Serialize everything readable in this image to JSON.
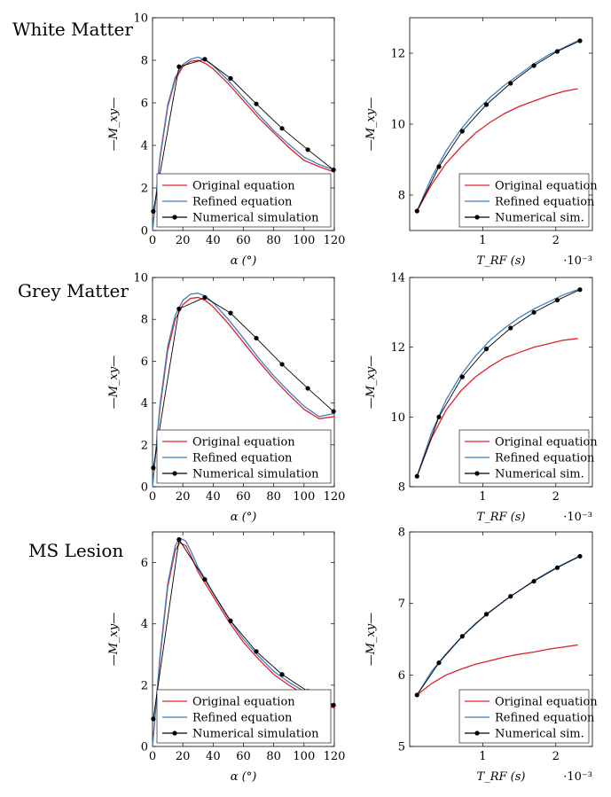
{
  "figure": {
    "row_labels": [
      "White Matter",
      "Grey Matter",
      "MS Lesion"
    ],
    "colors": {
      "original": "#e0202a",
      "refined": "#3f7fc0",
      "numerical": "#000000"
    }
  },
  "chart_data": [
    {
      "id": "wm-alpha",
      "type": "line",
      "row_label": "White Matter",
      "xlabel": "α (°)",
      "ylabel": "—M_xy—",
      "xlim": [
        0,
        120
      ],
      "ylim": [
        0,
        10
      ],
      "xticks": [
        "0",
        "20",
        "40",
        "60",
        "80",
        "100",
        "120"
      ],
      "xtick_values": [
        0,
        20,
        40,
        60,
        80,
        100,
        120
      ],
      "yticks": [
        "0",
        "2",
        "4",
        "6",
        "8",
        "10"
      ],
      "ytick_values": [
        0,
        2,
        4,
        6,
        8,
        10
      ],
      "exponent_label": "",
      "legend": [
        "Original equation",
        "Refined equation",
        "Numerical simulation"
      ],
      "series": [
        {
          "name": "Original equation",
          "style": "line",
          "x": [
            0,
            5,
            10,
            15,
            20,
            25,
            30,
            35,
            40,
            50,
            60,
            70,
            80,
            90,
            100,
            110,
            120
          ],
          "y": [
            0,
            3.4,
            5.8,
            7.1,
            7.7,
            7.95,
            8.0,
            7.85,
            7.6,
            6.9,
            6.1,
            5.3,
            4.6,
            3.9,
            3.3,
            3.0,
            2.75
          ]
        },
        {
          "name": "Refined equation",
          "style": "line",
          "x": [
            0,
            5,
            10,
            15,
            20,
            25,
            30,
            35,
            40,
            50,
            60,
            70,
            80,
            90,
            100,
            110,
            120
          ],
          "y": [
            0,
            3.5,
            5.9,
            7.2,
            7.8,
            8.05,
            8.15,
            8.0,
            7.75,
            7.05,
            6.25,
            5.45,
            4.7,
            4.05,
            3.45,
            3.1,
            2.85
          ]
        },
        {
          "name": "Numerical simulation",
          "style": "markers",
          "x": [
            0.5,
            17.5,
            34.5,
            51.5,
            68.5,
            85.5,
            102.5,
            119.5
          ],
          "y": [
            0.9,
            7.7,
            8.05,
            7.15,
            5.95,
            4.8,
            3.8,
            2.85
          ]
        }
      ]
    },
    {
      "id": "wm-trf",
      "type": "line",
      "row_label": "White Matter",
      "xlabel": "T_RF (s)",
      "ylabel": "—M_xy—",
      "xlim": [
        0.0,
        2.5
      ],
      "ylim": [
        7.0,
        13.0
      ],
      "xticks": [
        "1",
        "2"
      ],
      "xtick_values": [
        1,
        2
      ],
      "yticks": [
        "8",
        "10",
        "12"
      ],
      "ytick_values": [
        8,
        10,
        12
      ],
      "exponent_label": "·10⁻³",
      "legend": [
        "Original equation",
        "Refined equation",
        "Numerical sim."
      ],
      "series": [
        {
          "name": "Original equation",
          "style": "line",
          "x": [
            0.1,
            0.3,
            0.5,
            0.7,
            0.9,
            1.1,
            1.3,
            1.5,
            1.7,
            1.9,
            2.1,
            2.3
          ],
          "y": [
            7.55,
            8.3,
            8.9,
            9.35,
            9.75,
            10.05,
            10.3,
            10.5,
            10.65,
            10.8,
            10.92,
            11.0
          ]
        },
        {
          "name": "Refined equation",
          "style": "line",
          "x": [
            0.1,
            0.3,
            0.5,
            0.7,
            0.9,
            1.1,
            1.3,
            1.5,
            1.7,
            1.9,
            2.1,
            2.3
          ],
          "y": [
            7.55,
            8.5,
            9.25,
            9.85,
            10.35,
            10.75,
            11.1,
            11.4,
            11.7,
            11.95,
            12.15,
            12.35
          ]
        },
        {
          "name": "Numerical sim.",
          "style": "markers",
          "x": [
            0.1,
            0.4,
            0.72,
            1.05,
            1.38,
            1.7,
            2.02,
            2.33
          ],
          "y": [
            7.55,
            8.8,
            9.8,
            10.55,
            11.15,
            11.65,
            12.05,
            12.35
          ]
        }
      ]
    },
    {
      "id": "gm-alpha",
      "type": "line",
      "row_label": "Grey Matter",
      "xlabel": "α (°)",
      "ylabel": "—M_xy—",
      "xlim": [
        0,
        120
      ],
      "ylim": [
        0,
        10
      ],
      "xticks": [
        "0",
        "20",
        "40",
        "60",
        "80",
        "100",
        "120"
      ],
      "xtick_values": [
        0,
        20,
        40,
        60,
        80,
        100,
        120
      ],
      "yticks": [
        "0",
        "2",
        "4",
        "6",
        "8",
        "10"
      ],
      "ytick_values": [
        0,
        2,
        4,
        6,
        8,
        10
      ],
      "exponent_label": "",
      "legend": [
        "Original equation",
        "Refined equation",
        "Numerical simulation"
      ],
      "series": [
        {
          "name": "Original equation",
          "style": "line",
          "x": [
            0,
            5,
            10,
            15,
            20,
            25,
            30,
            35,
            40,
            50,
            60,
            70,
            80,
            90,
            100,
            110,
            120
          ],
          "y": [
            0,
            3.8,
            6.5,
            8.0,
            8.7,
            9.0,
            9.05,
            8.9,
            8.6,
            7.8,
            6.9,
            6.0,
            5.15,
            4.4,
            3.7,
            3.25,
            3.35
          ]
        },
        {
          "name": "Refined equation",
          "style": "line",
          "x": [
            0,
            5,
            10,
            15,
            20,
            25,
            30,
            35,
            40,
            50,
            60,
            70,
            80,
            90,
            100,
            110,
            120
          ],
          "y": [
            0,
            3.95,
            6.7,
            8.2,
            8.9,
            9.2,
            9.25,
            9.1,
            8.8,
            8.0,
            7.1,
            6.15,
            5.3,
            4.55,
            3.85,
            3.35,
            3.5
          ]
        },
        {
          "name": "Numerical simulation",
          "style": "markers",
          "x": [
            0.5,
            17.5,
            34.5,
            51.5,
            68.5,
            85.5,
            102.5,
            119.5
          ],
          "y": [
            0.9,
            8.5,
            9.05,
            8.3,
            7.1,
            5.85,
            4.7,
            3.6
          ]
        }
      ]
    },
    {
      "id": "gm-trf",
      "type": "line",
      "row_label": "Grey Matter",
      "xlabel": "T_RF (s)",
      "ylabel": "—M_xy—",
      "xlim": [
        0.0,
        2.5
      ],
      "ylim": [
        8.0,
        14.0
      ],
      "xticks": [
        "1",
        "2"
      ],
      "xtick_values": [
        1,
        2
      ],
      "yticks": [
        "8",
        "10",
        "12",
        "14"
      ],
      "ytick_values": [
        8,
        10,
        12,
        14
      ],
      "exponent_label": "·10⁻³",
      "legend": [
        "Original equation",
        "Refined equation",
        "Numerical sim."
      ],
      "series": [
        {
          "name": "Original equation",
          "style": "line",
          "x": [
            0.1,
            0.3,
            0.5,
            0.7,
            0.9,
            1.1,
            1.3,
            1.5,
            1.7,
            1.9,
            2.1,
            2.3
          ],
          "y": [
            8.3,
            9.4,
            10.2,
            10.75,
            11.15,
            11.45,
            11.7,
            11.85,
            12.0,
            12.1,
            12.2,
            12.25
          ]
        },
        {
          "name": "Refined equation",
          "style": "line",
          "x": [
            0.1,
            0.3,
            0.5,
            0.7,
            0.9,
            1.1,
            1.3,
            1.5,
            1.7,
            1.9,
            2.1,
            2.3
          ],
          "y": [
            8.3,
            9.55,
            10.5,
            11.2,
            11.75,
            12.2,
            12.55,
            12.85,
            13.1,
            13.3,
            13.5,
            13.65
          ]
        },
        {
          "name": "Numerical sim.",
          "style": "markers",
          "x": [
            0.1,
            0.4,
            0.72,
            1.05,
            1.38,
            1.7,
            2.02,
            2.33
          ],
          "y": [
            8.3,
            10.0,
            11.15,
            11.95,
            12.55,
            13.0,
            13.35,
            13.65
          ]
        }
      ]
    },
    {
      "id": "ms-alpha",
      "type": "line",
      "row_label": "MS Lesion",
      "xlabel": "α (°)",
      "ylabel": "—M_xy—",
      "xlim": [
        0,
        120
      ],
      "ylim": [
        0,
        7
      ],
      "xticks": [
        "0",
        "20",
        "40",
        "60",
        "80",
        "100",
        "120"
      ],
      "xtick_values": [
        0,
        20,
        40,
        60,
        80,
        100,
        120
      ],
      "yticks": [
        "0",
        "2",
        "4",
        "6"
      ],
      "ytick_values": [
        0,
        2,
        4,
        6
      ],
      "exponent_label": "",
      "legend": [
        "Original equation",
        "Refined equation",
        "Numerical simulation"
      ],
      "series": [
        {
          "name": "Original equation",
          "style": "line",
          "x": [
            0,
            5,
            10,
            15,
            18,
            22,
            26,
            30,
            35,
            40,
            50,
            60,
            70,
            80,
            90,
            100,
            110,
            120
          ],
          "y": [
            0,
            2.9,
            5.2,
            6.4,
            6.65,
            6.55,
            6.15,
            5.7,
            5.3,
            4.9,
            4.1,
            3.4,
            2.85,
            2.35,
            2.0,
            1.7,
            1.45,
            1.25
          ]
        },
        {
          "name": "Refined equation",
          "style": "line",
          "x": [
            0,
            5,
            10,
            15,
            18,
            22,
            26,
            30,
            35,
            40,
            50,
            60,
            70,
            80,
            90,
            100,
            110,
            120
          ],
          "y": [
            0,
            3.0,
            5.3,
            6.55,
            6.8,
            6.7,
            6.3,
            5.85,
            5.45,
            5.0,
            4.2,
            3.5,
            2.95,
            2.45,
            2.1,
            1.8,
            1.5,
            1.3
          ]
        },
        {
          "name": "Numerical simulation",
          "style": "markers",
          "x": [
            0.5,
            17.5,
            34.5,
            51.5,
            68.5,
            85.5,
            102.5,
            119.5
          ],
          "y": [
            0.9,
            6.75,
            5.45,
            4.1,
            3.1,
            2.35,
            1.8,
            1.35
          ]
        }
      ]
    },
    {
      "id": "ms-trf",
      "type": "line",
      "row_label": "MS Lesion",
      "xlabel": "T_RF (s)",
      "ylabel": "—M_xy—",
      "xlim": [
        0.0,
        2.5
      ],
      "ylim": [
        5.0,
        8.0
      ],
      "xticks": [
        "1",
        "2"
      ],
      "xtick_values": [
        1,
        2
      ],
      "yticks": [
        "5",
        "6",
        "7",
        "8"
      ],
      "ytick_values": [
        5,
        6,
        7,
        8
      ],
      "exponent_label": "·10⁻³",
      "legend": [
        "Original equation",
        "Refined equation",
        "Numerical sim."
      ],
      "series": [
        {
          "name": "Original equation",
          "style": "line",
          "x": [
            0.1,
            0.3,
            0.5,
            0.7,
            0.9,
            1.1,
            1.3,
            1.5,
            1.7,
            1.9,
            2.1,
            2.3
          ],
          "y": [
            5.72,
            5.88,
            6.0,
            6.08,
            6.15,
            6.2,
            6.25,
            6.29,
            6.32,
            6.36,
            6.39,
            6.42
          ]
        },
        {
          "name": "Refined equation",
          "style": "line",
          "x": [
            0.1,
            0.3,
            0.5,
            0.7,
            0.9,
            1.1,
            1.3,
            1.5,
            1.7,
            1.9,
            2.1,
            2.3
          ],
          "y": [
            5.72,
            6.05,
            6.3,
            6.52,
            6.72,
            6.88,
            7.04,
            7.18,
            7.32,
            7.44,
            7.55,
            7.65
          ]
        },
        {
          "name": "Numerical sim.",
          "style": "markers",
          "x": [
            0.1,
            0.4,
            0.72,
            1.05,
            1.38,
            1.7,
            2.02,
            2.33
          ],
          "y": [
            5.72,
            6.17,
            6.54,
            6.85,
            7.1,
            7.31,
            7.5,
            7.66
          ]
        }
      ]
    }
  ]
}
